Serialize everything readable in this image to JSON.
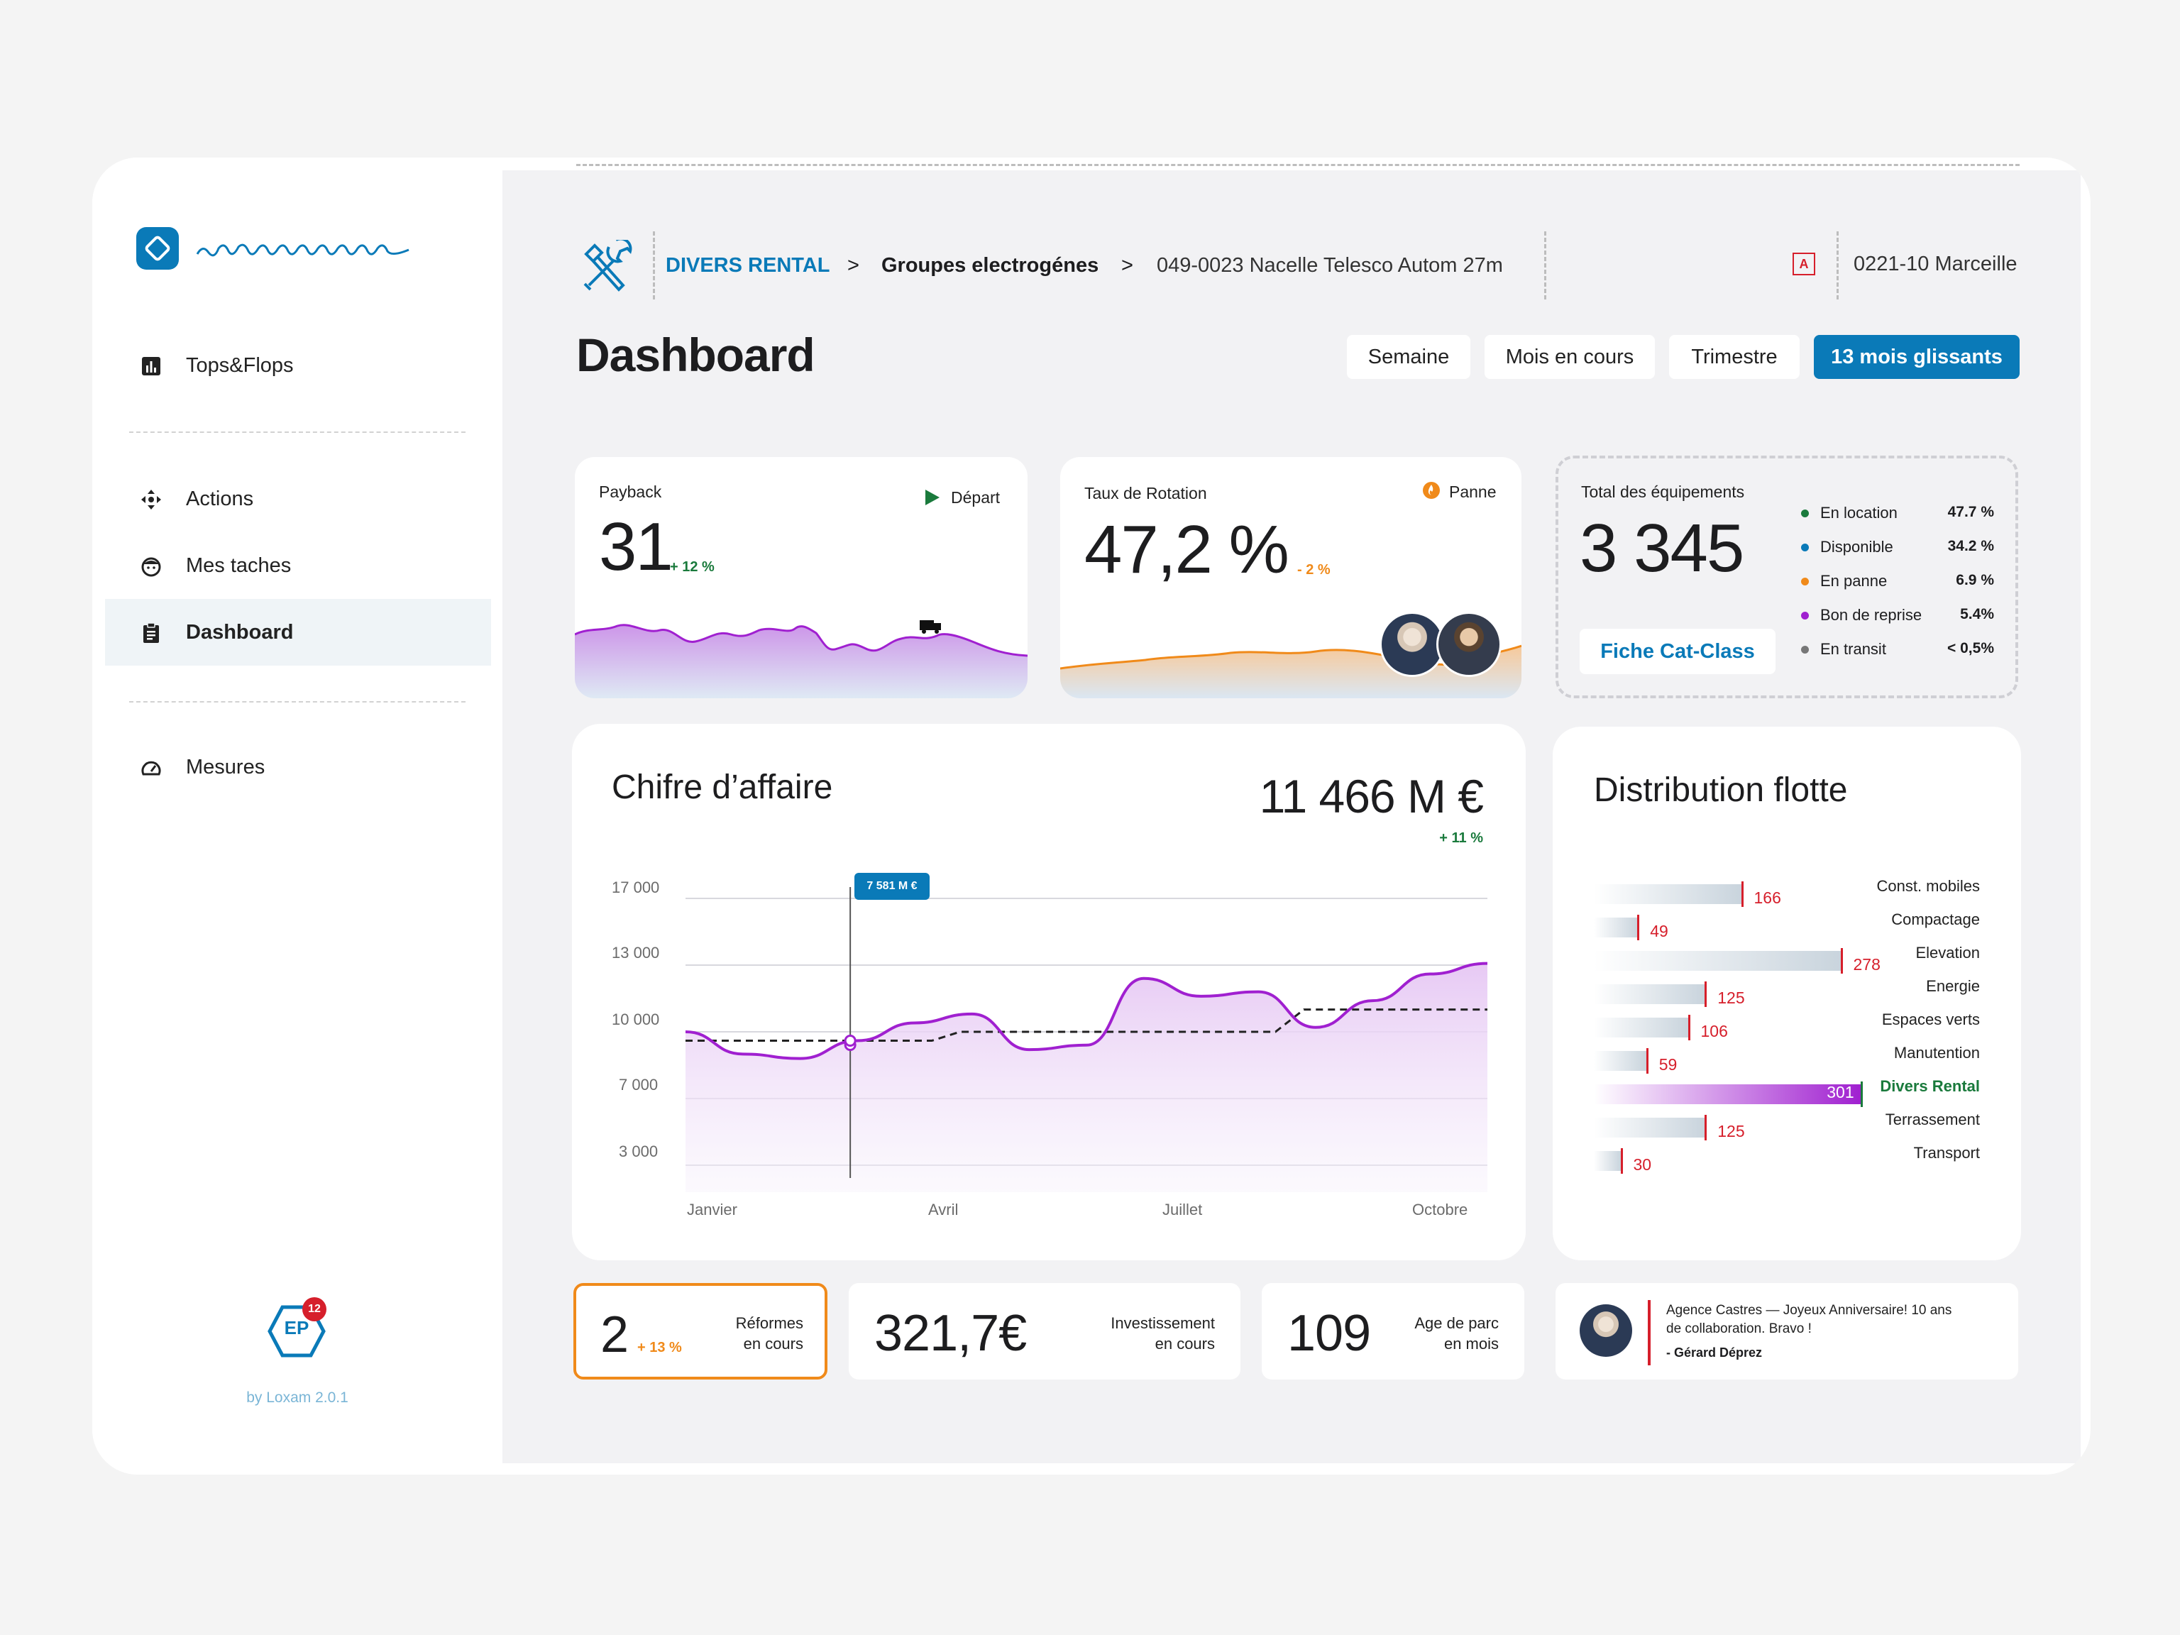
{
  "sidebar": {
    "items": [
      {
        "label": "Tops&Flops",
        "icon": "bar-chart-icon"
      },
      {
        "label": "Actions",
        "icon": "move-arrows-icon"
      },
      {
        "label": "Mes taches",
        "icon": "face-icon"
      },
      {
        "label": "Dashboard",
        "icon": "clipboard-icon",
        "active": true
      },
      {
        "label": "Mesures",
        "icon": "speedometer-icon"
      }
    ],
    "ep_badge": "EP",
    "notification_count": "12",
    "version": "by Loxam 2.0.1"
  },
  "breadcrumb": {
    "section": "DIVERS RENTAL",
    "separator": ">",
    "category": "Groupes electrogénes",
    "item": "049-0023 Nacelle Telesco Autom 27m",
    "agency_badge": "A",
    "agency": "0221-10 Marceille"
  },
  "page_title": "Dashboard",
  "periods": [
    "Semaine",
    "Mois en cours",
    "Trimestre",
    "13 mois glissants"
  ],
  "kpis": {
    "payback": {
      "label": "Payback",
      "value": "31",
      "delta": "+ 12 %",
      "status": "Départ"
    },
    "rotation": {
      "label": "Taux de Rotation",
      "value": "47,2 %",
      "delta": "- 2 %",
      "status": "Panne"
    },
    "total": {
      "label": "Total des équipements",
      "value": "3 345",
      "link": "Fiche Cat-Class",
      "legend": [
        {
          "label": "En location",
          "value": "47.7 %",
          "color": "#1a7a3c"
        },
        {
          "label": "Disponible",
          "value": "34.2 %",
          "color": "#0a7ab8"
        },
        {
          "label": "En panne",
          "value": "6.9 %",
          "color": "#f08a1a"
        },
        {
          "label": "Bon de reprise",
          "value": "5.4%",
          "color": "#a020d0"
        },
        {
          "label": "En transit",
          "value": "< 0,5%",
          "color": "#777777"
        }
      ]
    }
  },
  "revenue": {
    "title": "Chifre d’affaire",
    "total": "11 466 M €",
    "delta": "+ 11 %",
    "tooltip": "7 581 M €"
  },
  "chart_data": {
    "type": "line",
    "yticks": [
      "17 000",
      "13 000",
      "10 000",
      "7 000",
      "3 000"
    ],
    "xticks": [
      "Janvier",
      "Avril",
      "Juillet",
      "Octobre"
    ],
    "series": [
      {
        "values": [
          10000,
          9000,
          8800,
          9600,
          10400,
          10800,
          9200,
          9400,
          12400,
          11600,
          11800,
          10200,
          11400,
          12600,
          13100
        ]
      },
      {
        "values": [
          9600,
          9600,
          9600,
          9600,
          9600,
          10000,
          10000,
          10000,
          10000,
          10000,
          10000,
          11000,
          11000,
          11000,
          11000
        ]
      }
    ]
  },
  "distribution": {
    "title": "Distribution flotte",
    "rows": [
      {
        "label": "Const. mobiles",
        "value": "166",
        "n": 166
      },
      {
        "label": "Compactage",
        "value": "49",
        "n": 49
      },
      {
        "label": "Elevation",
        "value": "278",
        "n": 278
      },
      {
        "label": "Energie",
        "value": "125",
        "n": 125
      },
      {
        "label": "Espaces verts",
        "value": "106",
        "n": 106
      },
      {
        "label": "Manutention",
        "value": "59",
        "n": 59
      },
      {
        "label": "Divers Rental",
        "value": "301",
        "n": 301,
        "highlight": true
      },
      {
        "label": "Terrassement",
        "value": "125",
        "n": 125
      },
      {
        "label": "Transport",
        "value": "30",
        "n": 30
      }
    ]
  },
  "bottom": {
    "reformes": {
      "value": "2",
      "delta": "+ 13 %",
      "label1": "Réformes",
      "label2": "en cours"
    },
    "invest": {
      "value": "321,7€",
      "label1": "Investissement",
      "label2": "en cours"
    },
    "age": {
      "value": "109",
      "label1": "Age de parc",
      "label2": "en mois"
    },
    "message": {
      "text1": "Agence Castres — Joyeux Anniversaire! 10 ans",
      "text2": "de collaboration. Bravo !",
      "author": "- Gérard Déprez"
    }
  }
}
